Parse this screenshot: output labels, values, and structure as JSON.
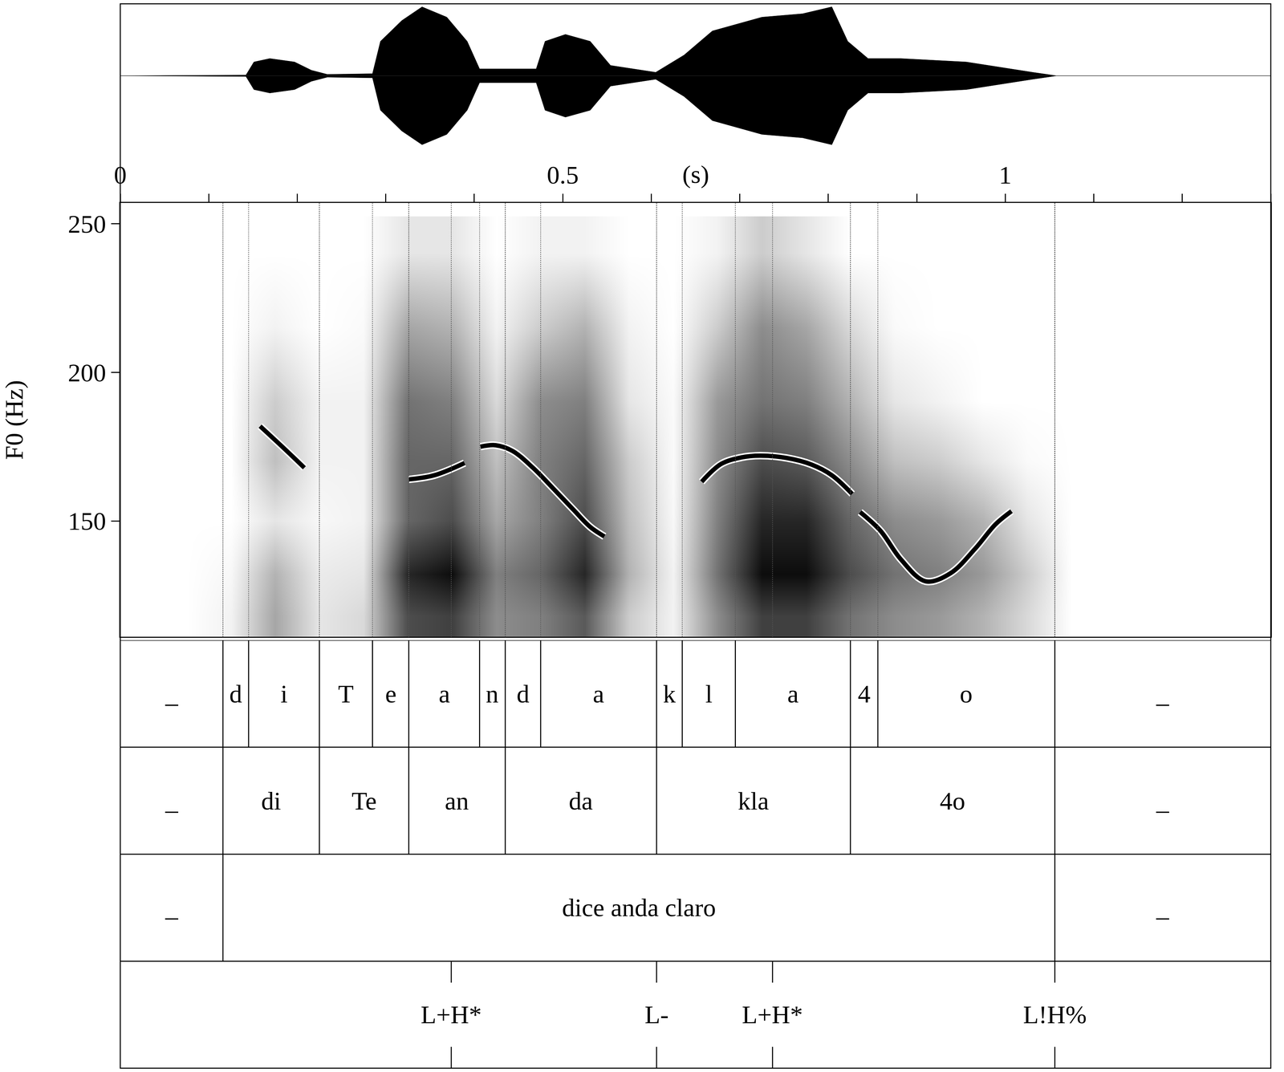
{
  "chart_data": {
    "type": "spectrogram",
    "xlabel": "(s)",
    "xlim": [
      0,
      1.3
    ],
    "xticks": [
      0,
      0.5,
      1
    ],
    "xminor_ticks": [
      0.1,
      0.2,
      0.3,
      0.4,
      0.6,
      0.7,
      0.8,
      0.9,
      1.1,
      1.2,
      1.3
    ],
    "ylabel": "F0 (Hz)",
    "ylim": [
      111,
      257
    ],
    "yticks": [
      150,
      200,
      250
    ],
    "grid": false,
    "color": "#000000",
    "f0_contour": [
      {
        "x": [
          0.158,
          0.183,
          0.208
        ],
        "values": [
          181.9,
          175,
          167.9
        ]
      },
      {
        "x": [
          0.326,
          0.355,
          0.389
        ],
        "values": [
          164,
          165.4,
          169.5
        ]
      },
      {
        "x": [
          0.407,
          0.424,
          0.443,
          0.466,
          0.489,
          0.512,
          0.531,
          0.547
        ],
        "values": [
          175,
          175.5,
          173.6,
          168,
          161,
          153.8,
          148,
          144.8
        ]
      },
      {
        "x": [
          0.657,
          0.679,
          0.702,
          0.723,
          0.753,
          0.781,
          0.804,
          0.827
        ],
        "values": [
          163.2,
          169.2,
          171.4,
          172,
          171.2,
          169,
          165.4,
          159.1
        ]
      },
      {
        "x": [
          0.836,
          0.859,
          0.882,
          0.91,
          0.938,
          0.966,
          0.989,
          1.007
        ],
        "values": [
          153,
          146.7,
          137.1,
          129.7,
          132.4,
          140.7,
          148.9,
          153.3
        ]
      }
    ],
    "waveform": {
      "color": "#000000",
      "ylim": [
        -1.06,
        1.06
      ],
      "x": [
        0,
        0.142,
        0.151,
        0.169,
        0.197,
        0.216,
        0.234,
        0.285,
        0.294,
        0.318,
        0.341,
        0.369,
        0.392,
        0.406,
        0.47,
        0.48,
        0.503,
        0.531,
        0.554,
        0.605,
        0.637,
        0.669,
        0.725,
        0.771,
        0.804,
        0.822,
        0.845,
        0.882,
        0.956,
        1.031,
        1.058,
        1.3
      ],
      "values": [
        0,
        0.01,
        0.2,
        0.25,
        0.2,
        0.08,
        0.02,
        0.03,
        0.5,
        0.8,
        1.0,
        0.85,
        0.5,
        0.1,
        0.1,
        0.5,
        0.6,
        0.5,
        0.15,
        0.05,
        0.3,
        0.65,
        0.85,
        0.9,
        1.0,
        0.5,
        0.25,
        0.25,
        0.2,
        0.05,
        0,
        0
      ]
    },
    "spectrogram": {
      "zlim": [
        0,
        1
      ],
      "x": [
        0.025,
        0.075,
        0.125,
        0.175,
        0.225,
        0.275,
        0.325,
        0.375,
        0.425,
        0.475,
        0.525,
        0.575,
        0.625,
        0.675,
        0.725,
        0.775,
        0.825,
        0.875,
        0.925,
        0.975,
        1.025,
        1.075,
        1.125,
        1.175,
        1.225,
        1.275
      ],
      "y": [
        118,
        132,
        150,
        170,
        190,
        215,
        240
      ],
      "z": [
        [
          0,
          0,
          0.05,
          0.35,
          0.1,
          0.15,
          0.7,
          0.75,
          0.45,
          0.5,
          0.65,
          0.2,
          0.05,
          0.45,
          0.75,
          0.75,
          0.55,
          0.45,
          0.4,
          0.3,
          0.15,
          0,
          0,
          0,
          0,
          0
        ],
        [
          0,
          0,
          0.03,
          0.3,
          0.08,
          0.1,
          0.85,
          0.95,
          0.5,
          0.6,
          0.85,
          0.3,
          0.05,
          0.55,
          0.95,
          0.95,
          0.7,
          0.55,
          0.5,
          0.4,
          0.2,
          0,
          0,
          0,
          0,
          0
        ],
        [
          0,
          0,
          0,
          0.1,
          0.03,
          0.05,
          0.6,
          0.7,
          0.35,
          0.5,
          0.7,
          0.25,
          0.03,
          0.5,
          0.85,
          0.85,
          0.6,
          0.45,
          0.4,
          0.3,
          0.1,
          0,
          0,
          0,
          0,
          0
        ],
        [
          0,
          0,
          0,
          0.25,
          0.05,
          0.05,
          0.6,
          0.6,
          0.25,
          0.5,
          0.6,
          0.2,
          0.02,
          0.45,
          0.7,
          0.65,
          0.45,
          0.25,
          0.2,
          0.1,
          0.02,
          0,
          0,
          0,
          0,
          0
        ],
        [
          0,
          0,
          0,
          0.2,
          0.05,
          0.05,
          0.55,
          0.5,
          0.15,
          0.45,
          0.5,
          0.1,
          0.02,
          0.4,
          0.55,
          0.5,
          0.3,
          0.1,
          0.05,
          0,
          0,
          0,
          0,
          0,
          0,
          0
        ],
        [
          0,
          0,
          0,
          0.05,
          0,
          0.02,
          0.35,
          0.3,
          0.05,
          0.2,
          0.3,
          0.05,
          0,
          0.2,
          0.45,
          0.35,
          0.15,
          0.02,
          0,
          0,
          0,
          0,
          0,
          0,
          0,
          0
        ],
        [
          0,
          0,
          0,
          0,
          0,
          0,
          0.1,
          0.1,
          0,
          0.05,
          0.05,
          0,
          0,
          0.05,
          0.2,
          0.1,
          0,
          0,
          0,
          0,
          0,
          0,
          0,
          0,
          0,
          0
        ]
      ]
    },
    "tiers": [
      {
        "type": "interval",
        "boundaries": [
          0,
          0.116,
          0.145,
          0.225,
          0.285,
          0.326,
          0.406,
          0.435,
          0.475,
          0.606,
          0.635,
          0.695,
          0.825,
          0.856,
          1.056,
          1.3
        ],
        "labels": [
          "_",
          "d",
          "i",
          "T",
          "e",
          "a",
          "n",
          "d",
          "a",
          "k",
          "l",
          "a",
          "4",
          "o",
          "_"
        ]
      },
      {
        "type": "interval",
        "boundaries": [
          0,
          0.116,
          0.225,
          0.326,
          0.435,
          0.606,
          0.825,
          1.056,
          1.3
        ],
        "labels": [
          "_",
          "di",
          "Te",
          "an",
          "da",
          "kla",
          "4o",
          "_"
        ]
      },
      {
        "type": "interval",
        "boundaries": [
          0,
          0.116,
          1.056,
          1.3
        ],
        "labels": [
          "_",
          "dice anda claro",
          "_"
        ]
      },
      {
        "type": "point",
        "times": [
          0.374,
          0.606,
          0.737,
          1.056
        ],
        "labels": [
          "L+H*",
          "L-",
          "L+H*",
          "L!H%"
        ]
      }
    ]
  }
}
